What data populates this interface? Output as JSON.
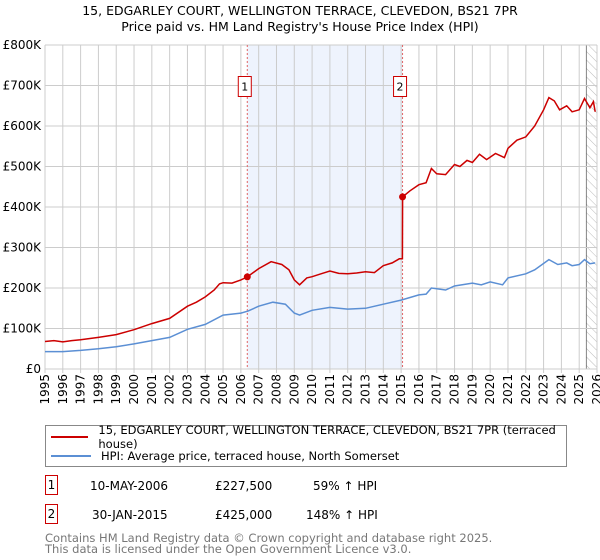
{
  "title": "15, EDGARLEY COURT, WELLINGTON TERRACE, CLEVEDON, BS21 7PR",
  "subtitle": "Price paid vs. HM Land Registry's House Price Index (HPI)",
  "chart_data": {
    "type": "line",
    "ylim": [
      0,
      800000
    ],
    "xlim": [
      1995,
      2026
    ],
    "yticks": [
      {
        "v": 0,
        "label": "£0"
      },
      {
        "v": 100000,
        "label": "£100K"
      },
      {
        "v": 200000,
        "label": "£200K"
      },
      {
        "v": 300000,
        "label": "£300K"
      },
      {
        "v": 400000,
        "label": "£400K"
      },
      {
        "v": 500000,
        "label": "£500K"
      },
      {
        "v": 600000,
        "label": "£600K"
      },
      {
        "v": 700000,
        "label": "£700K"
      },
      {
        "v": 800000,
        "label": "£800K"
      }
    ],
    "xticks": [
      "1995",
      "1996",
      "1997",
      "1998",
      "1999",
      "2000",
      "2001",
      "2002",
      "2003",
      "2004",
      "2005",
      "2006",
      "2007",
      "2008",
      "2009",
      "2010",
      "2011",
      "2012",
      "2013",
      "2014",
      "2015",
      "2016",
      "2017",
      "2018",
      "2019",
      "2020",
      "2021",
      "2022",
      "2023",
      "2024",
      "2025",
      "2026"
    ],
    "shaded_range": [
      2006.36,
      2015.08
    ],
    "forecast_hatch_from": 2025.4,
    "colors": {
      "property": "#cc0000",
      "hpi": "#5b8fd4",
      "shade": "#eef3fd"
    },
    "series": [
      {
        "name": "15, EDGARLEY COURT, WELLINGTON TERRACE, CLEVEDON, BS21 7PR (terraced house)",
        "x": [
          1995,
          1995.5,
          1996,
          1996.5,
          1997,
          1998,
          1999,
          2000,
          2001,
          2002,
          2003,
          2003.5,
          2004,
          2004.5,
          2004.8,
          2005,
          2005.5,
          2006,
          2006.36,
          2007,
          2007.7,
          2008.3,
          2008.7,
          2009,
          2009.3,
          2009.7,
          2010,
          2010.5,
          2011,
          2011.5,
          2012,
          2012.5,
          2013,
          2013.5,
          2014,
          2014.5,
          2014.9,
          2015.07,
          2015.08,
          2015.5,
          2016,
          2016.4,
          2016.7,
          2017,
          2017.5,
          2018,
          2018.3,
          2018.7,
          2019,
          2019.4,
          2019.8,
          2020.3,
          2020.8,
          2021,
          2021.5,
          2022,
          2022.5,
          2023,
          2023.3,
          2023.6,
          2023.9,
          2024.3,
          2024.6,
          2025,
          2025.3,
          2025.6,
          2025.8,
          2025.9
        ],
        "values": [
          68000,
          70000,
          67000,
          70000,
          72000,
          78000,
          85000,
          97000,
          112000,
          125000,
          155000,
          165000,
          178000,
          195000,
          210000,
          213000,
          212000,
          220000,
          227500,
          248000,
          265000,
          258000,
          245000,
          220000,
          208000,
          225000,
          228000,
          235000,
          242000,
          236000,
          235000,
          237000,
          240000,
          238000,
          255000,
          262000,
          272000,
          272000,
          425000,
          440000,
          455000,
          460000,
          495000,
          482000,
          480000,
          505000,
          500000,
          515000,
          510000,
          530000,
          517000,
          532000,
          522000,
          545000,
          565000,
          573000,
          600000,
          640000,
          670000,
          662000,
          640000,
          650000,
          635000,
          640000,
          668000,
          645000,
          660000,
          635000
        ]
      },
      {
        "name": "HPI: Average price, terraced house, North Somerset",
        "x": [
          1995,
          1996,
          1997,
          1998,
          1999,
          2000,
          2001,
          2002,
          2003,
          2004,
          2005,
          2006,
          2006.4,
          2007,
          2007.8,
          2008.5,
          2009,
          2009.3,
          2010,
          2011,
          2012,
          2013,
          2014,
          2015,
          2016,
          2016.4,
          2016.7,
          2017.5,
          2018,
          2019,
          2019.5,
          2020,
          2020.7,
          2021,
          2022,
          2022.5,
          2023.3,
          2023.8,
          2024.3,
          2024.6,
          2025,
          2025.3,
          2025.6,
          2025.9
        ],
        "values": [
          43000,
          43000,
          46000,
          50000,
          55000,
          62000,
          70000,
          78000,
          98000,
          110000,
          133000,
          138000,
          143000,
          155000,
          165000,
          160000,
          138000,
          133000,
          145000,
          152000,
          148000,
          150000,
          160000,
          170000,
          183000,
          185000,
          200000,
          195000,
          205000,
          212000,
          208000,
          215000,
          208000,
          225000,
          235000,
          245000,
          270000,
          258000,
          262000,
          255000,
          258000,
          270000,
          260000,
          262000
        ]
      }
    ],
    "sales": [
      {
        "id": "1",
        "x": 2006.36,
        "value": 227500
      },
      {
        "id": "2",
        "x": 2015.08,
        "value": 425000
      }
    ]
  },
  "legend": {
    "property": "15, EDGARLEY COURT, WELLINGTON TERRACE, CLEVEDON, BS21 7PR (terraced house)",
    "hpi": "HPI: Average price, terraced house, North Somerset"
  },
  "transactions": [
    {
      "id": "1",
      "date": "10-MAY-2006",
      "price": "£227,500",
      "hpi": "59% ↑ HPI"
    },
    {
      "id": "2",
      "date": "30-JAN-2015",
      "price": "£425,000",
      "hpi": "148% ↑ HPI"
    }
  ],
  "footer": {
    "line1": "Contains HM Land Registry data © Crown copyright and database right 2025.",
    "line2": "This data is licensed under the Open Government Licence v3.0."
  }
}
